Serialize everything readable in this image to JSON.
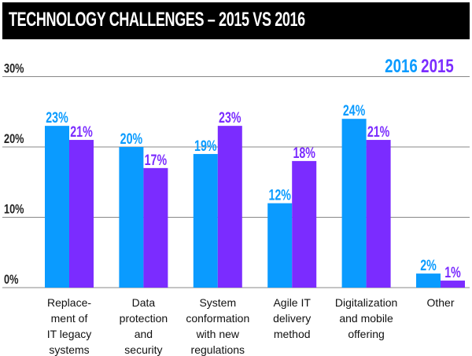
{
  "chart_data": {
    "type": "bar",
    "title": "TECHNOLOGY CHALLENGES – 2015 VS 2016",
    "categories": [
      [
        "Replace-",
        "ment of",
        "IT legacy",
        "systems"
      ],
      [
        "Data",
        "protection",
        "and",
        "security"
      ],
      [
        "System",
        "conformation",
        "with new",
        "regulations"
      ],
      [
        "Agile IT",
        "delivery",
        "method"
      ],
      [
        "Digitalization",
        "and mobile",
        "offering"
      ],
      [
        "Other"
      ]
    ],
    "series": [
      {
        "name": "2016",
        "color": "#0a9bff",
        "values": [
          23,
          20,
          19,
          12,
          24,
          2
        ],
        "labels": [
          "23%",
          "20%",
          "19%",
          "12%",
          "24%",
          "2%"
        ]
      },
      {
        "name": "2015",
        "color": "#7b2cff",
        "values": [
          21,
          17,
          23,
          18,
          21,
          1
        ],
        "labels": [
          "21%",
          "17%",
          "23%",
          "18%",
          "21%",
          "1%"
        ]
      }
    ],
    "ylim": [
      0,
      30
    ],
    "yticks": [
      0,
      10,
      20,
      30
    ],
    "ytick_labels": [
      "0%",
      "10%",
      "20%",
      "30%"
    ],
    "grid": true,
    "legend": "top-right",
    "xlabel": "",
    "ylabel": ""
  }
}
